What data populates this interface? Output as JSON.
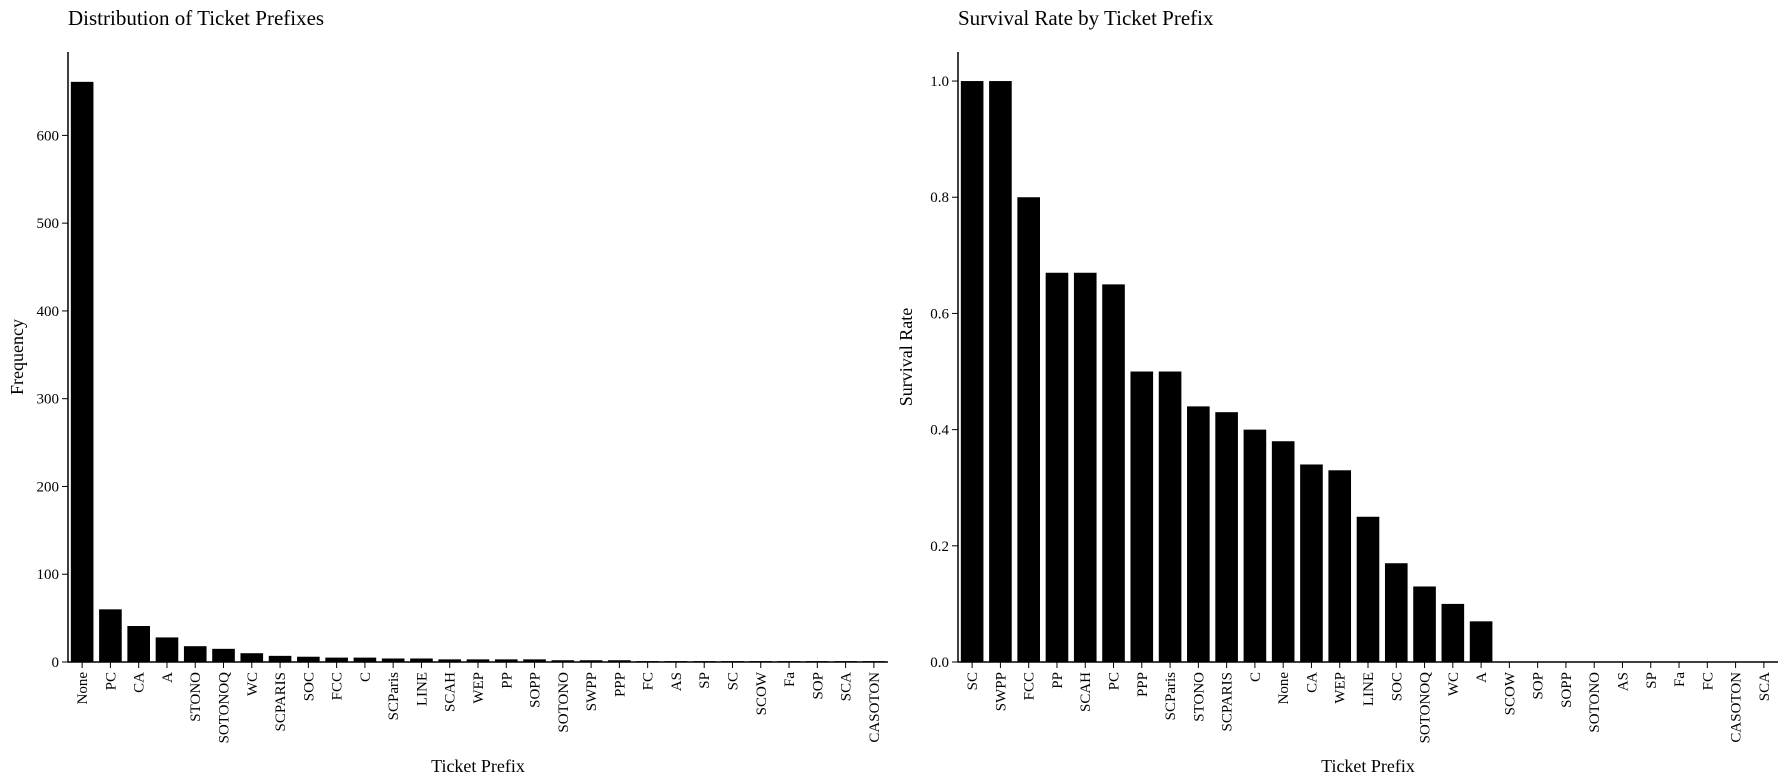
{
  "chart_data": [
    {
      "type": "bar",
      "title": "Distribution of Ticket Prefixes",
      "xlabel": "Ticket Prefix",
      "ylabel": "Frequency",
      "ylim": [
        0,
        695
      ],
      "yticks": [
        0,
        100,
        200,
        300,
        400,
        500,
        600
      ],
      "grid": false,
      "bar_color": "#000000",
      "categories": [
        "None",
        "PC",
        "CA",
        "A",
        "STONO",
        "SOTONOQ",
        "WC",
        "SCPARIS",
        "SOC",
        "FCC",
        "C",
        "SCParis",
        "LINE",
        "SCAH",
        "WEP",
        "PP",
        "SOPP",
        "SOTONO",
        "SWPP",
        "PPP",
        "FC",
        "AS",
        "SP",
        "SC",
        "SCOW",
        "Fa",
        "SOP",
        "SCA",
        "CASOTON"
      ],
      "values": [
        661,
        60,
        41,
        28,
        18,
        15,
        10,
        7,
        6,
        5,
        5,
        4,
        4,
        3,
        3,
        3,
        3,
        2,
        2,
        2,
        1,
        1,
        1,
        1,
        1,
        1,
        1,
        1,
        1
      ]
    },
    {
      "type": "bar",
      "title": "Survival Rate by Ticket Prefix",
      "xlabel": "Ticket Prefix",
      "ylabel": "Survival Rate",
      "ylim": [
        0,
        1.05
      ],
      "yticks": [
        0.0,
        0.2,
        0.4,
        0.6,
        0.8,
        1.0
      ],
      "grid": false,
      "bar_color": "#000000",
      "categories": [
        "SC",
        "SWPP",
        "FCC",
        "PP",
        "SCAH",
        "PC",
        "PPP",
        "SCParis",
        "STONO",
        "SCPARIS",
        "C",
        "None",
        "CA",
        "WEP",
        "LINE",
        "SOC",
        "SOTONOQ",
        "WC",
        "A",
        "SCOW",
        "SOP",
        "SOPP",
        "SOTONO",
        "AS",
        "SP",
        "Fa",
        "FC",
        "CASOTON",
        "SCA"
      ],
      "values": [
        1.0,
        1.0,
        0.8,
        0.67,
        0.67,
        0.65,
        0.5,
        0.5,
        0.44,
        0.43,
        0.4,
        0.38,
        0.34,
        0.33,
        0.25,
        0.17,
        0.13,
        0.1,
        0.07,
        0,
        0,
        0,
        0,
        0,
        0,
        0,
        0,
        0,
        0
      ]
    }
  ]
}
